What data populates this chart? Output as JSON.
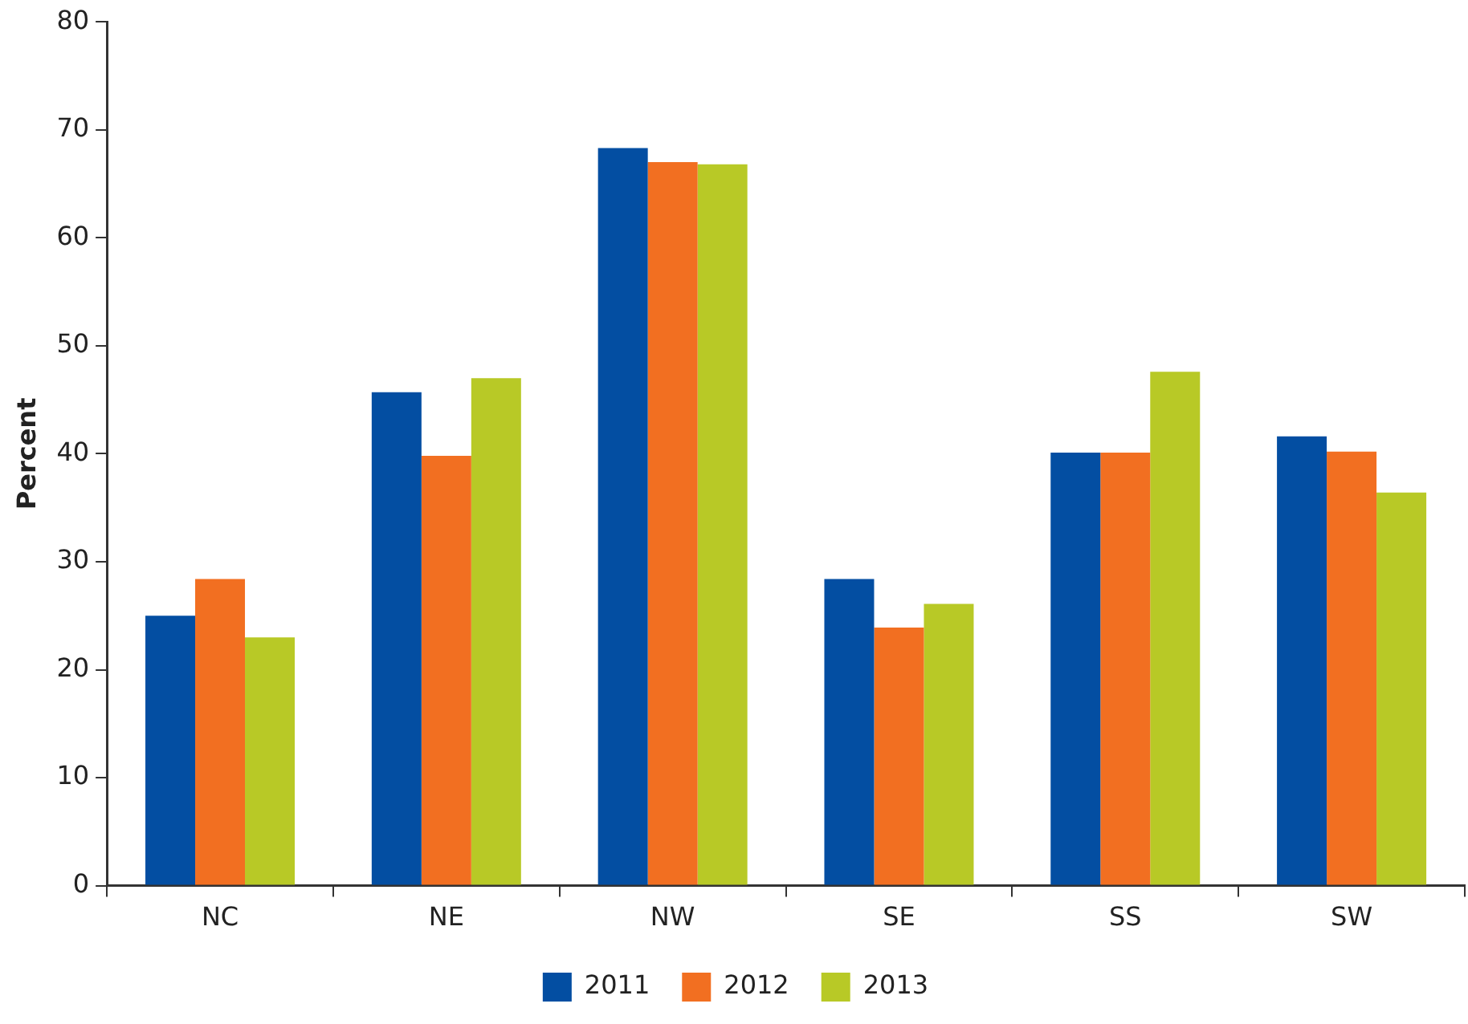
{
  "chart_data": {
    "type": "bar",
    "ylabel": "Percent",
    "categories": [
      "NC",
      "NE",
      "NW",
      "SE",
      "SS",
      "SW"
    ],
    "series": [
      {
        "name": "2011",
        "color": "#034ea2",
        "values": [
          25.0,
          45.7,
          68.3,
          28.4,
          40.1,
          41.6
        ]
      },
      {
        "name": "2012",
        "color": "#f26f21",
        "values": [
          28.4,
          39.8,
          67.0,
          23.9,
          40.1,
          40.2
        ]
      },
      {
        "name": "2013",
        "color": "#b8c926",
        "values": [
          23.0,
          47.0,
          66.8,
          26.1,
          47.6,
          36.4
        ]
      }
    ],
    "ylim": [
      0,
      80
    ],
    "yticks": [
      0,
      10,
      20,
      30,
      40,
      50,
      60,
      70,
      80
    ],
    "grid": false,
    "legend": "bottom"
  }
}
